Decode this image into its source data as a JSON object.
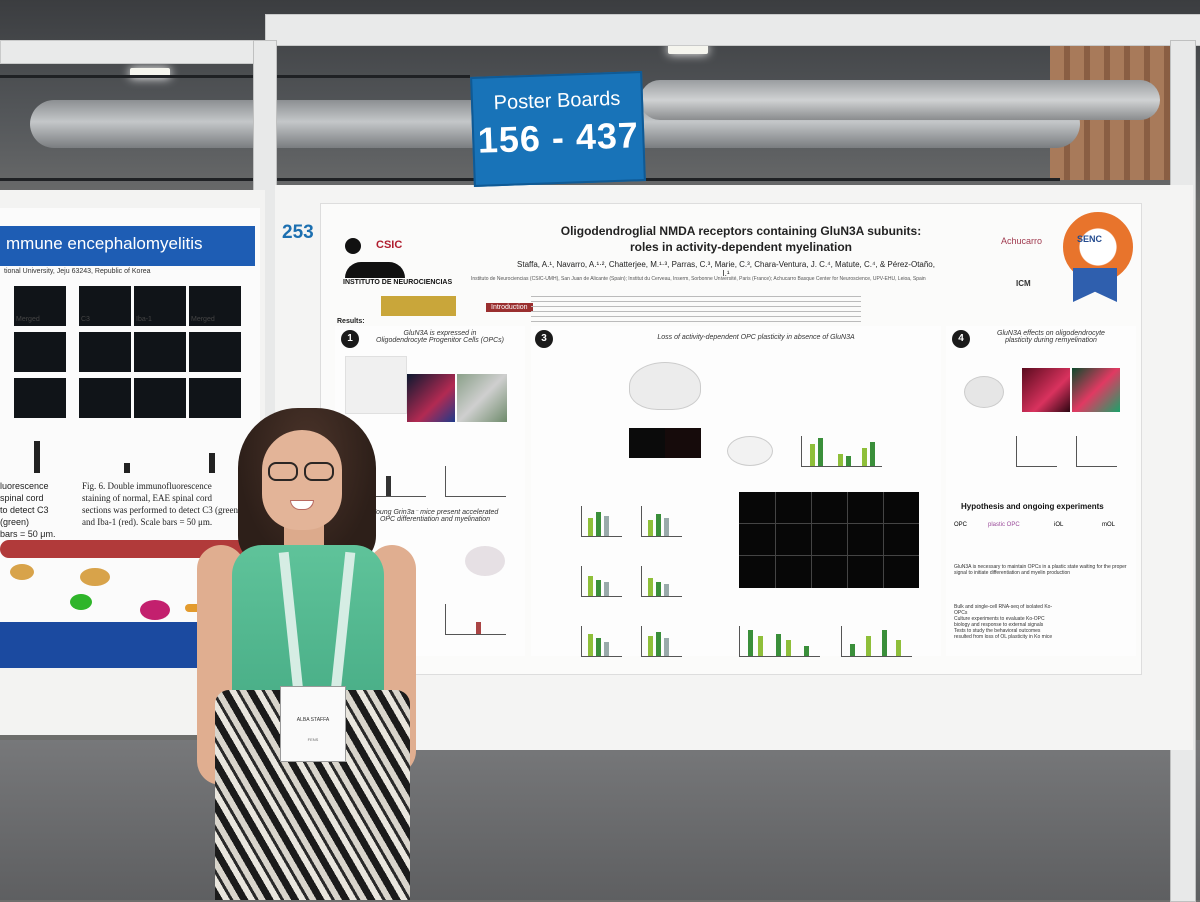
{
  "scene": {
    "sign": {
      "line1": "Poster Boards",
      "line2": "156 - 437"
    },
    "board_number": "253"
  },
  "left_poster": {
    "heading": "mmune encephalomyelitis",
    "affiliation": "tional University, Jeju 63243, Republic of Korea",
    "labels": [
      "Merged",
      "C3",
      "Iba-1",
      "Merged"
    ],
    "caption_lines": [
      "luorescence",
      "spinal cord",
      "to detect C3 (green)",
      "bars = 50 μm.",
      "Fig. 6. Double immunofluorescence",
      "staining of normal, EAE spinal cord",
      "sections was performed to detect C3 (green)",
      "and Iba-1 (red). Scale bars = 50 μm."
    ]
  },
  "poster": {
    "title_line1": "Oligodendroglial NMDA receptors containing GluN3A subunits:",
    "title_line2": "roles in activity-dependent myelination",
    "authors": "Staffa, A.¹, Navarro, A.¹·², Chatterjee, M.¹·³, Parras, C.³, Marie, C.³, Chara-Ventura, J. C.⁴, Matute, C.⁴, & Pérez-Otaño, I.¹",
    "affiliations": "Instituto de Neurociencias (CSIC-UMH), San Juan de Alicante (Spain); Institut du Cerveau, Inserm, Sorbonne Université, Paris (France); Achucarro Basque Center for Neuroscience, UPV-EHU, Leioa, Spain",
    "logo_csic": "CSIC",
    "logo_institute": "INSTITUTO DE NEUROCIENCIAS",
    "intro_label": "Introduction",
    "results_label": "Results:",
    "sections": [
      {
        "num": "1",
        "title_a": "GluN3A is expressed in",
        "title_b": "Oligodendrocyte Progenitor Cells (OPCs)"
      },
      {
        "num": "3",
        "title_a": "Loss of activity-dependent OPC plasticity in absence of GluN3A",
        "title_b": ""
      },
      {
        "num": "4",
        "title_a": "GluN3A effects on oligodendrocyte",
        "title_b": "plasticity during remyelination"
      }
    ],
    "section2_title_a": "Young Grin3a⁻ mice present accelerated",
    "section2_title_b": "OPC differentiation and myelination",
    "hypothesis_title": "Hypothesis and ongoing experiments",
    "hypothesis_stages": [
      "OPC",
      "plastic OPC",
      "iOL",
      "mOL"
    ],
    "hypothesis_text": "GluN3A is necessary to maintain OPCs in a plastic state waiting for the proper signal to initiate differentiation and myelin production",
    "ongoing": [
      "Bulk and single-cell RNA-seq of isolated Ko-OPCs",
      "Culture experiments to evaluate Ko-OPC biology and response to external signals",
      "Tests to study the behavioral outcomes resulted from loss of OL plasticity in Ko mice"
    ],
    "achucarro": "Achucarro",
    "icm": "ICM",
    "award": "SENC"
  },
  "badge": {
    "name": "ALBA STAFFA",
    "org": "FENS"
  },
  "colors": {
    "sign_blue": "#1873b8",
    "poster_red": "#b01e2f",
    "top_green": "#5fc39a",
    "left_poster_blue": "#1e5db4"
  }
}
